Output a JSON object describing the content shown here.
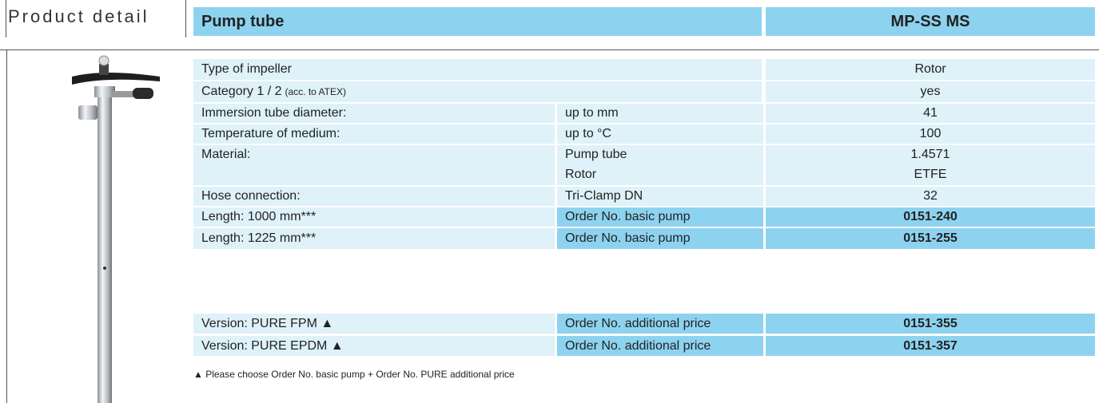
{
  "header": {
    "section": "Product detail",
    "title": "Pump tube",
    "model": "MP-SS MS"
  },
  "table": {
    "rows": [
      {
        "label": "Type of impeller",
        "value": "Rotor"
      },
      {
        "label": "Category 1 / 2",
        "note": "(acc. to ATEX)",
        "value": "yes"
      },
      {
        "label": "Immersion tube diameter:",
        "unit": "up to mm",
        "value": "41"
      },
      {
        "label": "Temperature of medium:",
        "unit": "up to °C",
        "value": "100"
      },
      {
        "label": "Material:",
        "unit": "Pump tube",
        "value": "1.4571"
      },
      {
        "unit": "Rotor",
        "value": "ETFE"
      },
      {
        "label": "Hose connection:",
        "unit": "Tri-Clamp DN",
        "value": "32"
      },
      {
        "label": "Length: 1000 mm***",
        "unit": "Order No. basic pump",
        "value": "0151-240"
      },
      {
        "label": "Length: 1225 mm***",
        "unit": "Order No. basic pump",
        "value": "0151-255"
      },
      {
        "label": "Version: PURE FPM ▲",
        "unit": "Order No. additional price",
        "value": "0151-355"
      },
      {
        "label": "Version: PURE EPDM ▲",
        "unit": "Order No. additional price",
        "value": "0151-357"
      }
    ]
  },
  "footnote": "▲ Please choose Order No. basic pump + Order No. PURE additional price"
}
